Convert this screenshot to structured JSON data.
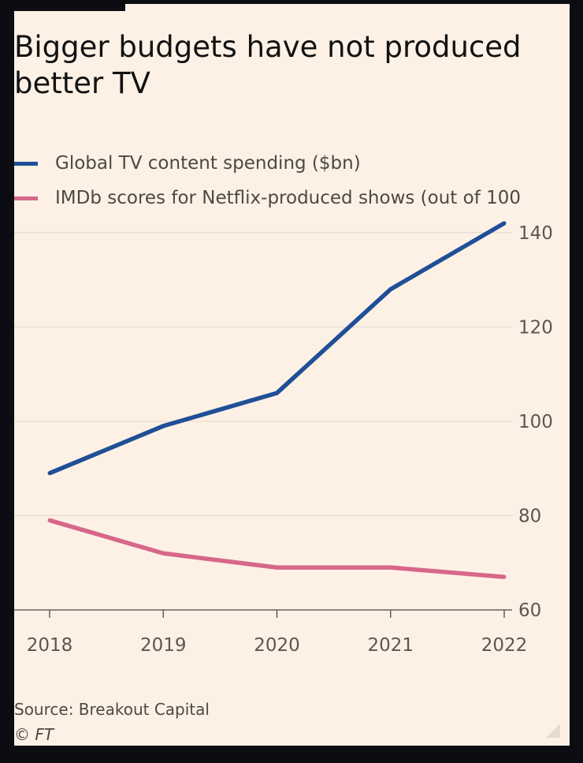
{
  "chart_data": {
    "type": "line",
    "title": "Bigger budgets have not produced better TV",
    "categories": [
      "2018",
      "2019",
      "2020",
      "2021",
      "2022"
    ],
    "x_tick_labels": [
      "2018",
      "2019",
      "2020",
      "2021",
      "2022"
    ],
    "y_tick_labels": [
      "140",
      "120",
      "100",
      "80",
      "60"
    ],
    "y_ticks": [
      140,
      120,
      100,
      80,
      60
    ],
    "ylim": [
      60,
      145
    ],
    "y_axis_side": "right",
    "grid": true,
    "legend_position": "top-left",
    "series": [
      {
        "name": "Global TV content spending ($bn)",
        "color": "#1f4f96",
        "values": [
          89,
          99,
          106,
          128,
          142
        ]
      },
      {
        "name": "IMDb scores for Netflix-produced shows (out of 100",
        "color": "#d7678a",
        "values": [
          79,
          72,
          69,
          69,
          67
        ]
      }
    ],
    "source": "Source: Breakout Capital",
    "credit": "© FT"
  }
}
